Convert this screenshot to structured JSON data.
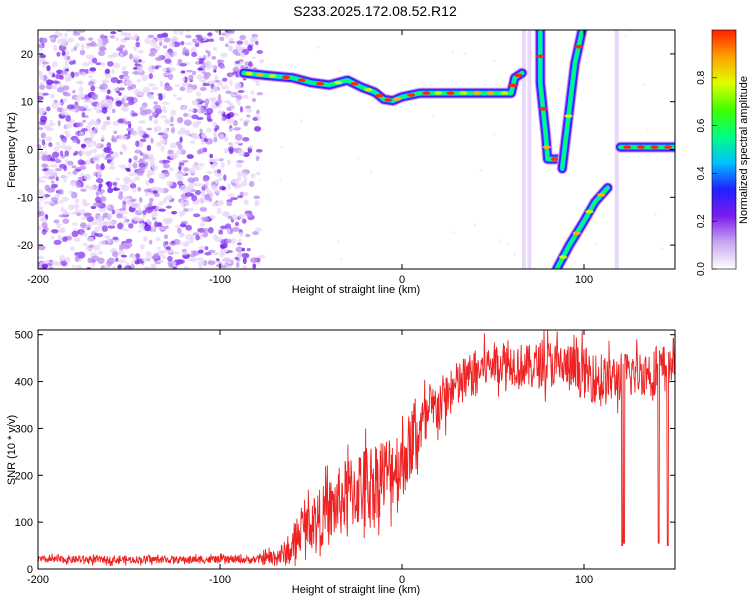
{
  "title": "S233.2025.172.08.52.R12",
  "chart_data": [
    {
      "type": "heatmap",
      "xlabel": "Height of straight line (km)",
      "ylabel": "Frequency (Hz)",
      "xlim": [
        -200,
        150
      ],
      "ylim": [
        -25,
        25
      ],
      "xticks": [
        -200,
        -100,
        0,
        100
      ],
      "yticks": [
        -20,
        -10,
        0,
        10,
        20
      ],
      "colorbar": {
        "label": "Normalized spectral amplitude",
        "range": [
          0,
          1
        ],
        "ticks": [
          0,
          0.2,
          0.4,
          0.6,
          0.8
        ],
        "colormap": [
          "#ffffff",
          "#c8a8f0",
          "#7a1cf0",
          "#2020ff",
          "#00c0ff",
          "#00ff80",
          "#40ff00",
          "#e0ff00",
          "#ffa000",
          "#ff2000"
        ]
      },
      "features": {
        "noise_region_x": [
          -200,
          -85
        ],
        "main_trace": [
          {
            "x": -87,
            "y": 16
          },
          {
            "x": -75,
            "y": 15.5
          },
          {
            "x": -60,
            "y": 15
          },
          {
            "x": -50,
            "y": 14
          },
          {
            "x": -40,
            "y": 13.5
          },
          {
            "x": -30,
            "y": 14.5
          },
          {
            "x": -22,
            "y": 13
          },
          {
            "x": -15,
            "y": 12
          },
          {
            "x": -10,
            "y": 10.5
          },
          {
            "x": -5,
            "y": 10.2
          },
          {
            "x": 0,
            "y": 11
          },
          {
            "x": 10,
            "y": 11.8
          },
          {
            "x": 30,
            "y": 11.8
          },
          {
            "x": 60,
            "y": 11.8
          },
          {
            "x": 62,
            "y": 15
          },
          {
            "x": 66,
            "y": 16
          }
        ],
        "vertical_streaks_x": [
          67,
          70,
          118
        ],
        "upper_branch": [
          {
            "x": 76,
            "y": 25
          },
          {
            "x": 76,
            "y": 14
          },
          {
            "x": 79,
            "y": 3
          },
          {
            "x": 80,
            "y": -2
          },
          {
            "x": 88,
            "y": -2
          }
        ],
        "rising_branch": [
          {
            "x": 88,
            "y": -4
          },
          {
            "x": 95,
            "y": 18
          },
          {
            "x": 99,
            "y": 25
          }
        ],
        "lower_branch": [
          {
            "x": 85,
            "y": -25
          },
          {
            "x": 92,
            "y": -20
          },
          {
            "x": 100,
            "y": -15
          },
          {
            "x": 106,
            "y": -11
          },
          {
            "x": 113,
            "y": -8
          }
        ],
        "right_branch": [
          {
            "x": 120,
            "y": 0.5
          },
          {
            "x": 150,
            "y": 0.5
          }
        ]
      }
    },
    {
      "type": "line",
      "xlabel": "Height of straight line (km)",
      "ylabel": "SNR (10 * v/v)",
      "xlim": [
        -200,
        150
      ],
      "ylim": [
        0,
        510
      ],
      "xticks": [
        -200,
        -100,
        0,
        100
      ],
      "yticks": [
        0,
        100,
        200,
        300,
        400,
        500
      ],
      "series": [
        {
          "color": "#ee2222",
          "envelope": [
            {
              "x": -200,
              "y": 20
            },
            {
              "x": -120,
              "y": 20
            },
            {
              "x": -80,
              "y": 20
            },
            {
              "x": -70,
              "y": 25
            },
            {
              "x": -60,
              "y": 40
            },
            {
              "x": -55,
              "y": 90
            },
            {
              "x": -50,
              "y": 100
            },
            {
              "x": -40,
              "y": 120
            },
            {
              "x": -30,
              "y": 160
            },
            {
              "x": -20,
              "y": 180
            },
            {
              "x": -10,
              "y": 200
            },
            {
              "x": 0,
              "y": 230
            },
            {
              "x": 10,
              "y": 300
            },
            {
              "x": 20,
              "y": 350
            },
            {
              "x": 30,
              "y": 390
            },
            {
              "x": 40,
              "y": 420
            },
            {
              "x": 50,
              "y": 440
            },
            {
              "x": 60,
              "y": 440
            },
            {
              "x": 70,
              "y": 430
            },
            {
              "x": 80,
              "y": 440
            },
            {
              "x": 90,
              "y": 430
            },
            {
              "x": 100,
              "y": 420
            },
            {
              "x": 110,
              "y": 400
            },
            {
              "x": 120,
              "y": 410
            },
            {
              "x": 130,
              "y": 420
            },
            {
              "x": 140,
              "y": 420
            },
            {
              "x": 150,
              "y": 450
            }
          ],
          "noise_amplitude": [
            {
              "x": -200,
              "y": 10
            },
            {
              "x": -80,
              "y": 10
            },
            {
              "x": -60,
              "y": 40
            },
            {
              "x": -40,
              "y": 90
            },
            {
              "x": -20,
              "y": 110
            },
            {
              "x": 0,
              "y": 100
            },
            {
              "x": 20,
              "y": 70
            },
            {
              "x": 50,
              "y": 55
            },
            {
              "x": 100,
              "y": 70
            },
            {
              "x": 150,
              "y": 60
            }
          ],
          "dips": [
            {
              "x": 121,
              "y": 50
            },
            {
              "x": 122,
              "y": 55
            },
            {
              "x": 141,
              "y": 55
            },
            {
              "x": 146,
              "y": 50
            }
          ]
        }
      ]
    }
  ]
}
